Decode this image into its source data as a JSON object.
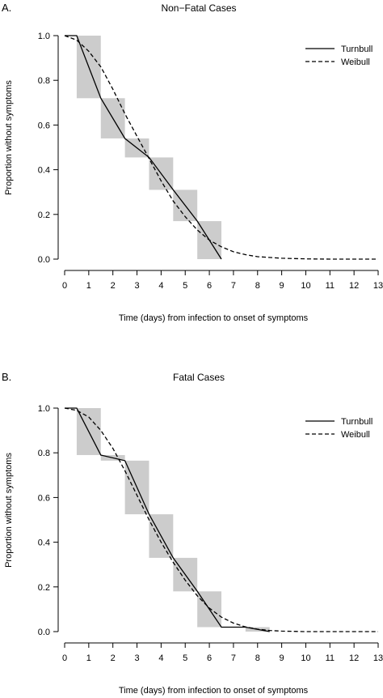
{
  "chart_data": [
    {
      "type": "line",
      "panel_label": "A.",
      "title": "Non−Fatal Cases",
      "xlabel": "Time (days) from infection to onset of symptoms",
      "ylabel": "Proportion without symptoms",
      "xlim": [
        0,
        13
      ],
      "ylim": [
        0,
        1
      ],
      "x_ticks": [
        "0",
        "1",
        "2",
        "3",
        "4",
        "5",
        "6",
        "7",
        "8",
        "9",
        "10",
        "11",
        "12",
        "13"
      ],
      "y_ticks": [
        "0.0",
        "0.2",
        "0.4",
        "0.6",
        "0.8",
        "1.0"
      ],
      "legend_position": "top-right",
      "grid": false,
      "intervals": [
        {
          "x0": 0.5,
          "x1": 1.5,
          "y0": 0.72,
          "y1": 1.0
        },
        {
          "x0": 1.5,
          "x1": 2.5,
          "y0": 0.54,
          "y1": 0.72
        },
        {
          "x0": 2.5,
          "x1": 3.5,
          "y0": 0.455,
          "y1": 0.54
        },
        {
          "x0": 3.5,
          "x1": 4.5,
          "y0": 0.31,
          "y1": 0.455
        },
        {
          "x0": 4.5,
          "x1": 5.5,
          "y0": 0.17,
          "y1": 0.31
        },
        {
          "x0": 5.5,
          "x1": 6.5,
          "y0": 0.0,
          "y1": 0.17
        }
      ],
      "series": [
        {
          "name": "Turnbull",
          "style": "solid",
          "x": [
            0,
            0.5,
            1.5,
            2.5,
            3.5,
            4.5,
            5.5,
            6.5
          ],
          "y": [
            1.0,
            1.0,
            0.72,
            0.54,
            0.455,
            0.31,
            0.17,
            0.0
          ]
        },
        {
          "name": "Weibull",
          "style": "dashed",
          "x": [
            0,
            0.5,
            1,
            1.5,
            2,
            2.5,
            3,
            3.5,
            4,
            4.5,
            5,
            5.5,
            6,
            6.5,
            7,
            7.5,
            8,
            9,
            10,
            11,
            12,
            13
          ],
          "y": [
            1.0,
            0.98,
            0.93,
            0.86,
            0.76,
            0.65,
            0.55,
            0.45,
            0.35,
            0.26,
            0.19,
            0.13,
            0.085,
            0.055,
            0.033,
            0.02,
            0.011,
            0.004,
            0.001,
            0.0,
            0.0,
            0.0
          ]
        }
      ]
    },
    {
      "type": "line",
      "panel_label": "B.",
      "title": "Fatal Cases",
      "xlabel": "Time (days) from infection to onset of symptoms",
      "ylabel": "Proportion without symptoms",
      "xlim": [
        0,
        13
      ],
      "ylim": [
        0,
        1
      ],
      "x_ticks": [
        "0",
        "1",
        "2",
        "3",
        "4",
        "5",
        "6",
        "7",
        "8",
        "9",
        "10",
        "11",
        "12",
        "13"
      ],
      "y_ticks": [
        "0.0",
        "0.2",
        "0.4",
        "0.6",
        "0.8",
        "1.0"
      ],
      "legend_position": "top-right",
      "grid": false,
      "intervals": [
        {
          "x0": 0.5,
          "x1": 1.5,
          "y0": 0.79,
          "y1": 1.0
        },
        {
          "x0": 1.5,
          "x1": 2.5,
          "y0": 0.765,
          "y1": 0.79
        },
        {
          "x0": 2.5,
          "x1": 3.5,
          "y0": 0.525,
          "y1": 0.765
        },
        {
          "x0": 3.5,
          "x1": 4.5,
          "y0": 0.33,
          "y1": 0.525
        },
        {
          "x0": 4.5,
          "x1": 5.5,
          "y0": 0.18,
          "y1": 0.33
        },
        {
          "x0": 5.5,
          "x1": 6.5,
          "y0": 0.02,
          "y1": 0.18
        },
        {
          "x0": 7.5,
          "x1": 8.5,
          "y0": 0.0,
          "y1": 0.02
        }
      ],
      "series": [
        {
          "name": "Turnbull",
          "style": "solid",
          "x": [
            0,
            0.5,
            1.5,
            2.5,
            3.5,
            4.5,
            5.5,
            6.5,
            7.5,
            8.5
          ],
          "y": [
            1.0,
            1.0,
            0.79,
            0.765,
            0.525,
            0.33,
            0.18,
            0.02,
            0.02,
            0.0
          ]
        },
        {
          "name": "Weibull",
          "style": "dashed",
          "x": [
            0,
            0.5,
            1,
            1.5,
            2,
            2.5,
            3,
            3.5,
            4,
            4.5,
            5,
            5.5,
            6,
            6.5,
            7,
            7.5,
            8,
            8.5,
            9,
            10,
            11,
            12,
            13
          ],
          "y": [
            1.0,
            0.99,
            0.96,
            0.9,
            0.82,
            0.72,
            0.61,
            0.5,
            0.4,
            0.31,
            0.23,
            0.16,
            0.105,
            0.065,
            0.038,
            0.021,
            0.011,
            0.005,
            0.002,
            0.0,
            0.0,
            0.0,
            0.0
          ]
        }
      ]
    }
  ]
}
